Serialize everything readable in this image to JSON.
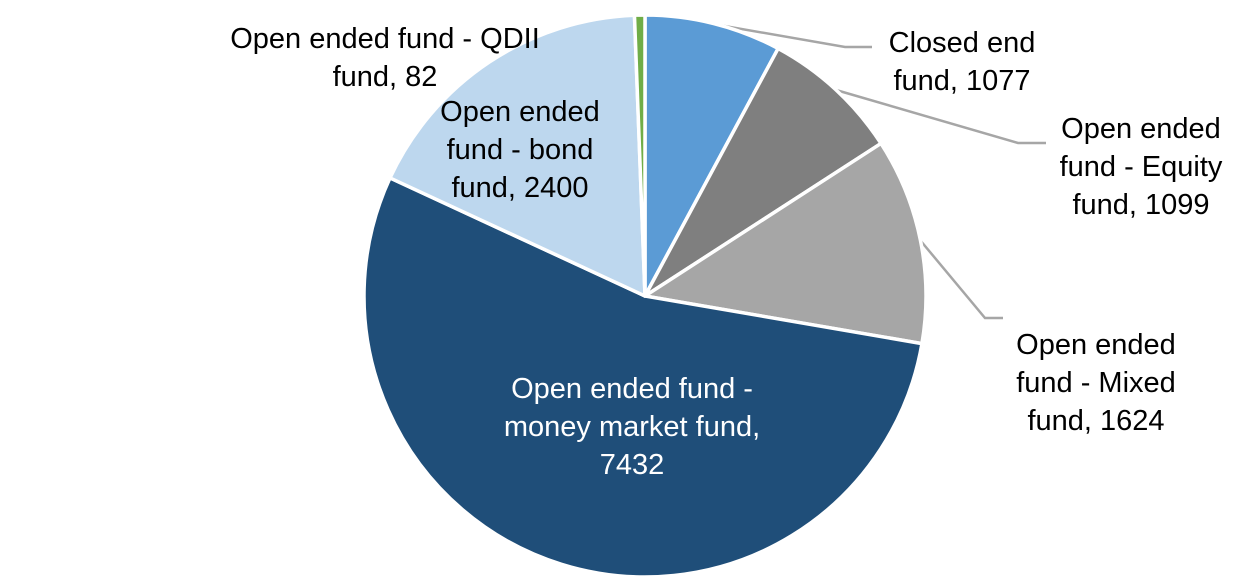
{
  "chart_data": {
    "type": "pie",
    "title": "",
    "total": 13714,
    "start_angle_deg": 0,
    "direction": "clockwise-from-top",
    "legend": "none",
    "label_format": "category, value",
    "leader_line_color": "#A6A6A6",
    "slices": [
      {
        "label": "Closed end fund",
        "value": 1077,
        "color": "#5B9BD5",
        "label_lines": [
          "Closed end",
          "fund, 1077"
        ],
        "label_color": "#000000",
        "label_position": "outside"
      },
      {
        "label": "Open ended fund - Equity fund",
        "value": 1099,
        "color": "#7F7F7F",
        "label_lines": [
          "Open ended",
          "fund - Equity",
          "fund, 1099"
        ],
        "label_color": "#000000",
        "label_position": "outside"
      },
      {
        "label": "Open ended fund - Mixed fund",
        "value": 1624,
        "color": "#A6A6A6",
        "label_lines": [
          "Open ended",
          "fund - Mixed",
          "fund, 1624"
        ],
        "label_color": "#000000",
        "label_position": "outside"
      },
      {
        "label": "Open ended fund - money market fund",
        "value": 7432,
        "color": "#1F4E79",
        "label_lines": [
          "Open ended fund -",
          "money market fund,",
          "7432"
        ],
        "label_color": "#FFFFFF",
        "label_position": "inside"
      },
      {
        "label": "Open ended fund - bond fund",
        "value": 2400,
        "color": "#BDD7EE",
        "label_lines": [
          "Open ended",
          "fund - bond",
          "fund, 2400"
        ],
        "label_color": "#000000",
        "label_position": "outside"
      },
      {
        "label": "Open ended fund - QDII fund",
        "value": 82,
        "color": "#70AD47",
        "label_lines": [
          "Open ended fund - QDII",
          "fund, 82"
        ],
        "label_color": "#000000",
        "label_position": "outside"
      }
    ]
  }
}
